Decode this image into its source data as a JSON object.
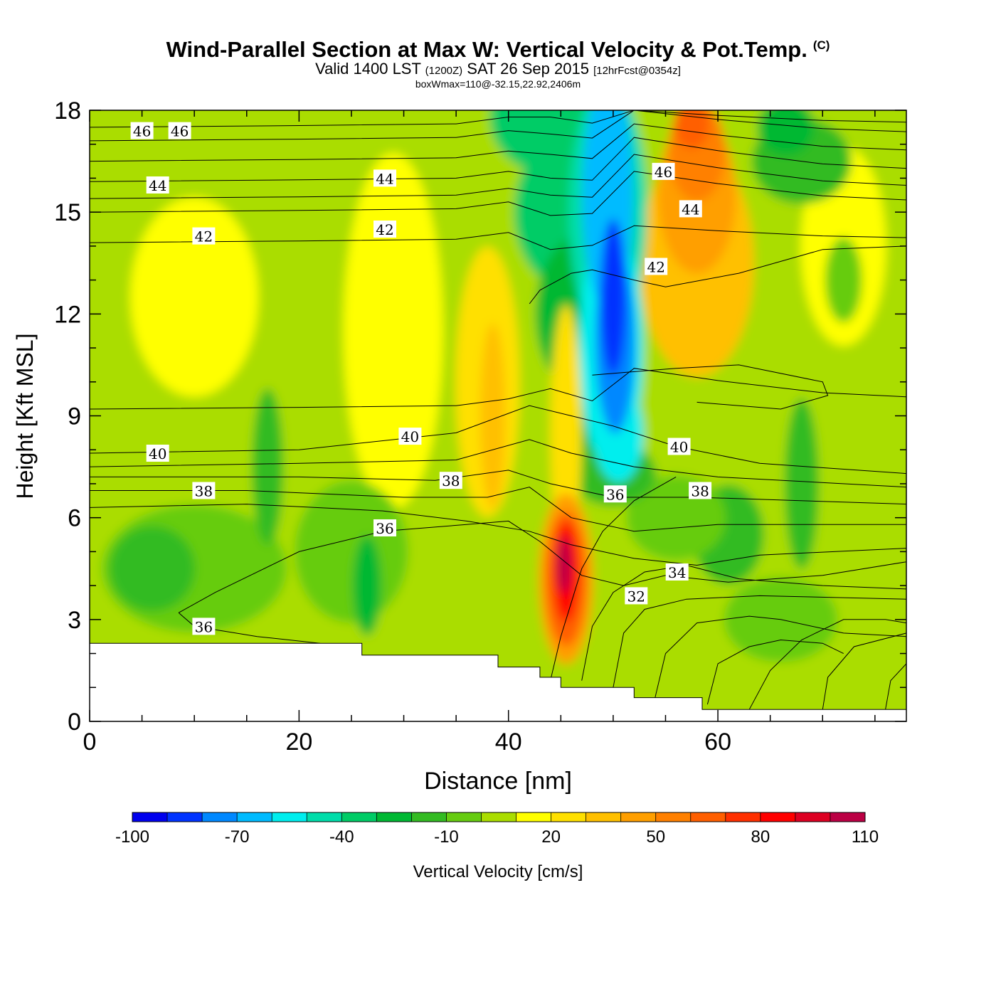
{
  "chart_data": {
    "type": "heatmap",
    "title": "Wind-Parallel Section at Max W: Vertical Velocity & Pot.Temp.",
    "copyright_mark": "(C)",
    "subtitle": {
      "valid_prefix": "Valid 1400 LST",
      "utc": "(1200Z)",
      "date": "SAT 26 Sep 2015",
      "forecast": "[12hrFcst@0354z]"
    },
    "info_line": "boxWmax=110@-32.15,22.92,2406m",
    "xlabel": "Distance [nm]",
    "ylabel": "Height [Kft MSL]",
    "xlim": [
      0,
      78
    ],
    "ylim": [
      0,
      18
    ],
    "x_ticks": [
      0,
      20,
      40,
      60
    ],
    "y_ticks": [
      0,
      3,
      6,
      9,
      12,
      15,
      18
    ],
    "colorbar": {
      "label": "Vertical Velocity [cm/s]",
      "levels": [
        -100,
        -90,
        -80,
        -70,
        -60,
        -50,
        -40,
        -30,
        -20,
        -10,
        0,
        10,
        20,
        30,
        40,
        50,
        60,
        70,
        80,
        90,
        100,
        110
      ],
      "colors": [
        "#0000ee",
        "#0033ff",
        "#0088ff",
        "#00bbff",
        "#00eeee",
        "#00ddaa",
        "#00cc66",
        "#00b833",
        "#33bb22",
        "#66cc11",
        "#aadd00",
        "#ffff00",
        "#ffe000",
        "#ffc000",
        "#ff9f00",
        "#ff8000",
        "#ff5f00",
        "#ff3000",
        "#ff0000",
        "#dd0022",
        "#bb0044"
      ],
      "tick_labels": [
        -100,
        -70,
        -40,
        -10,
        20,
        50,
        80,
        110
      ]
    },
    "vertical_velocity_field": [
      {
        "name": "updraft core",
        "x_range": [
          43.5,
          48
        ],
        "y_range": [
          1,
          7.5
        ],
        "max_cm_s": 110,
        "max_at": [
          45.5,
          4.5
        ]
      },
      {
        "name": "downdraft core",
        "x_range": [
          44,
          53
        ],
        "y_range": [
          7,
          18
        ],
        "min_cm_s": -90,
        "min_at": [
          50,
          13
        ]
      },
      {
        "name": "upper positive region",
        "x_range": [
          52,
          64
        ],
        "y_range": [
          9,
          18
        ],
        "max_cm_s": 70,
        "max_at": [
          57,
          17
        ]
      },
      {
        "name": "ambient",
        "x_range": [
          0,
          78
        ],
        "y_range": [
          0,
          18
        ],
        "typical_cm_s": [
          -10,
          30
        ]
      }
    ],
    "potential_temperature": {
      "contour_labels": [
        {
          "value": 46,
          "x": 5,
          "y": 17.4
        },
        {
          "value": 46,
          "x": 8.6,
          "y": 17.4
        },
        {
          "value": 46,
          "x": 54.8,
          "y": 16.2
        },
        {
          "value": 44,
          "x": 6.5,
          "y": 15.8
        },
        {
          "value": 44,
          "x": 28.2,
          "y": 16.0
        },
        {
          "value": 44,
          "x": 57.4,
          "y": 15.1
        },
        {
          "value": 42,
          "x": 10.9,
          "y": 14.3
        },
        {
          "value": 42,
          "x": 28.2,
          "y": 14.5
        },
        {
          "value": 42,
          "x": 54.1,
          "y": 13.4
        },
        {
          "value": 40,
          "x": 6.5,
          "y": 7.9
        },
        {
          "value": 40,
          "x": 30.6,
          "y": 8.4
        },
        {
          "value": 40,
          "x": 56.3,
          "y": 8.1
        },
        {
          "value": 38,
          "x": 10.9,
          "y": 6.8
        },
        {
          "value": 38,
          "x": 34.5,
          "y": 7.1
        },
        {
          "value": 38,
          "x": 58.3,
          "y": 6.8
        },
        {
          "value": 36,
          "x": 28.2,
          "y": 5.7
        },
        {
          "value": 36,
          "x": 50.2,
          "y": 6.7
        },
        {
          "value": 36,
          "x": 10.9,
          "y": 2.8
        },
        {
          "value": 34,
          "x": 56.1,
          "y": 4.4
        },
        {
          "value": 32,
          "x": 52.2,
          "y": 3.7
        }
      ]
    },
    "terrain_top_kft": [
      {
        "x": [
          0,
          26
        ],
        "height": 2.3
      },
      {
        "x": [
          26,
          39
        ],
        "height": 1.95
      },
      {
        "x": [
          39,
          43
        ],
        "height": 1.6
      },
      {
        "x": [
          43,
          45
        ],
        "height": 1.3
      },
      {
        "x": [
          45,
          52
        ],
        "height": 1.0
      },
      {
        "x": [
          52,
          58.5
        ],
        "height": 0.7
      },
      {
        "x": [
          58.5,
          78
        ],
        "height": 0.35
      }
    ]
  }
}
